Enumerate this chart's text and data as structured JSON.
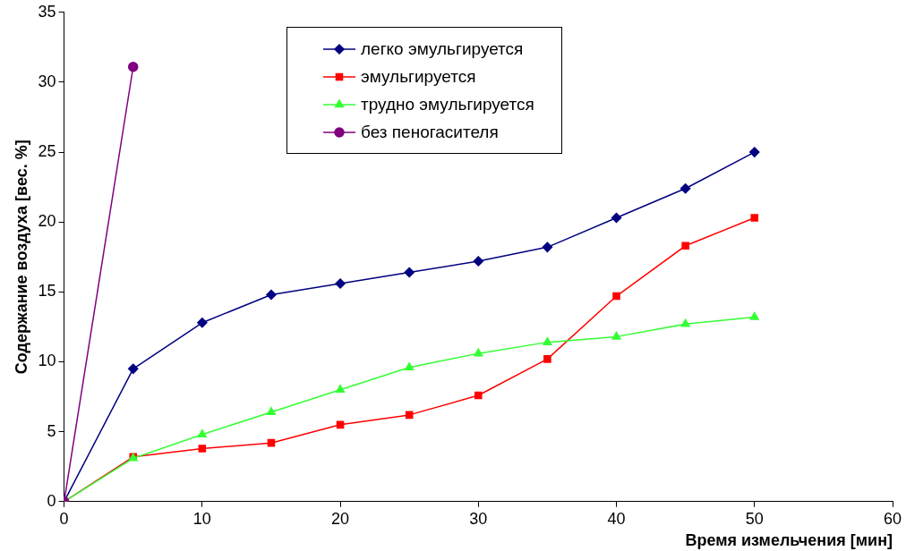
{
  "chart_data": {
    "type": "line",
    "xlabel": "Время измельчения [мин]",
    "ylabel": "Содержание воздуха [вес. %]",
    "xlim": [
      0,
      60
    ],
    "xticks": [
      0,
      10,
      20,
      30,
      40,
      50,
      60
    ],
    "ylim": [
      0,
      35
    ],
    "yticks": [
      0,
      5,
      10,
      15,
      20,
      25,
      30,
      35
    ],
    "grid": false,
    "legend": "top",
    "series": [
      {
        "name": "легко эмульгируется",
        "color": "#000080",
        "marker": "diamond",
        "x": [
          0,
          5,
          10,
          15,
          20,
          25,
          30,
          35,
          40,
          45,
          50
        ],
        "values": [
          0,
          9.5,
          12.8,
          14.8,
          15.6,
          16.4,
          17.2,
          18.2,
          20.3,
          22.4,
          25
        ]
      },
      {
        "name": "эмульгируется",
        "color": "#ff0000",
        "marker": "square",
        "x": [
          0,
          5,
          10,
          15,
          20,
          25,
          30,
          35,
          40,
          45,
          50
        ],
        "values": [
          0,
          3.2,
          3.8,
          4.2,
          5.5,
          6.2,
          7.6,
          10.2,
          14.7,
          18.3,
          20.3
        ]
      },
      {
        "name": "трудно эмульгируется",
        "color": "#33ff33",
        "marker": "triangle",
        "x": [
          0,
          5,
          10,
          15,
          20,
          25,
          30,
          35,
          40,
          45,
          50
        ],
        "values": [
          0,
          3.1,
          4.8,
          6.4,
          8.0,
          9.6,
          10.6,
          11.4,
          11.8,
          12.7,
          13.2
        ]
      },
      {
        "name": "без пеногасителя",
        "color": "#800080",
        "marker": "circle",
        "x": [
          0,
          5
        ],
        "values": [
          0,
          31.1
        ]
      }
    ]
  }
}
